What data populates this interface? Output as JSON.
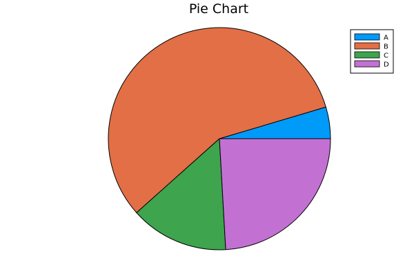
{
  "chart_data": {
    "type": "pie",
    "title": "Pie Chart",
    "categories": [
      "A",
      "B",
      "C",
      "D"
    ],
    "values": [
      4.6,
      57.0,
      14.3,
      24.1
    ],
    "colors": [
      "#009af9",
      "#e26f46",
      "#3ea44e",
      "#c271d2"
    ],
    "legend_position": "top-right",
    "start_angle_deg": 0,
    "direction": "counterclockwise"
  }
}
